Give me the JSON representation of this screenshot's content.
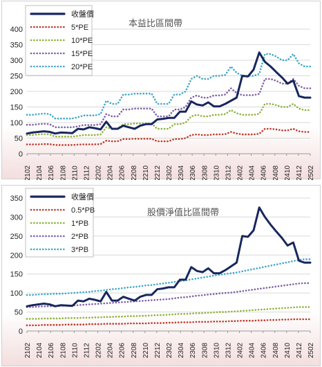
{
  "chart_data": [
    {
      "type": "line",
      "title": "本益比區間帶",
      "ylim": [
        0,
        400
      ],
      "yticks": [
        0,
        50,
        100,
        150,
        200,
        250,
        300,
        350,
        400
      ],
      "xticks": [
        "2102",
        "2104",
        "2106",
        "2108",
        "2110",
        "2112",
        "2202",
        "2204",
        "2206",
        "2208",
        "2210",
        "2212",
        "2302",
        "2304",
        "2306",
        "2308",
        "2310",
        "2312",
        "2402",
        "2404",
        "2406",
        "2408",
        "2410",
        "2412",
        "2502"
      ],
      "grid": true,
      "legend_placement": "top-left",
      "series": [
        {
          "name": "收盤價",
          "color": "#17275e",
          "style": "solid",
          "values": [
            65,
            68,
            70,
            72,
            70,
            65,
            68,
            67,
            66,
            80,
            78,
            85,
            82,
            78,
            103,
            80,
            80,
            90,
            85,
            80,
            90,
            95,
            95,
            110,
            112,
            115,
            115,
            135,
            135,
            168,
            158,
            155,
            165,
            152,
            152,
            160,
            170,
            180,
            250,
            248,
            270,
            325,
            295,
            280,
            262,
            245,
            225,
            235,
            185,
            180,
            180
          ]
        },
        {
          "name": "5*PE",
          "color": "#c0392b",
          "style": "dotted",
          "values": [
            30,
            30,
            30,
            31,
            31,
            28,
            28,
            28,
            28,
            29,
            30,
            30,
            30,
            31,
            42,
            40,
            40,
            47,
            47,
            48,
            48,
            48,
            48,
            40,
            40,
            40,
            47,
            47,
            50,
            60,
            62,
            60,
            60,
            62,
            62,
            63,
            70,
            65,
            62,
            62,
            62,
            64,
            80,
            80,
            78,
            75,
            75,
            80,
            72,
            70,
            70
          ]
        },
        {
          "name": "10*PE",
          "color": "#8db33a",
          "style": "dotted",
          "values": [
            60,
            60,
            62,
            63,
            62,
            55,
            55,
            55,
            55,
            57,
            60,
            60,
            60,
            62,
            85,
            80,
            80,
            95,
            95,
            97,
            97,
            97,
            97,
            80,
            80,
            80,
            95,
            95,
            100,
            120,
            125,
            120,
            120,
            125,
            125,
            127,
            140,
            130,
            125,
            125,
            125,
            128,
            160,
            160,
            156,
            150,
            150,
            160,
            145,
            140,
            140
          ]
        },
        {
          "name": "15*PE",
          "color": "#7f5fa6",
          "style": "dotted",
          "values": [
            93,
            93,
            95,
            96,
            95,
            85,
            85,
            85,
            85,
            88,
            92,
            92,
            92,
            95,
            127,
            120,
            120,
            142,
            142,
            145,
            145,
            145,
            145,
            120,
            120,
            120,
            142,
            142,
            150,
            180,
            187,
            180,
            180,
            187,
            187,
            190,
            210,
            195,
            188,
            188,
            188,
            192,
            240,
            240,
            234,
            225,
            225,
            240,
            218,
            210,
            210
          ]
        },
        {
          "name": "20*PE",
          "color": "#3ea7c9",
          "style": "dotted",
          "values": [
            125,
            125,
            127,
            129,
            127,
            113,
            113,
            113,
            113,
            117,
            123,
            123,
            123,
            127,
            170,
            160,
            160,
            190,
            190,
            193,
            193,
            193,
            193,
            160,
            160,
            160,
            190,
            190,
            200,
            240,
            250,
            240,
            240,
            250,
            250,
            253,
            280,
            260,
            250,
            250,
            250,
            256,
            320,
            320,
            312,
            300,
            300,
            320,
            290,
            280,
            280
          ]
        }
      ]
    },
    {
      "type": "line",
      "title": "股價淨值比區間帶",
      "ylim": [
        0,
        350
      ],
      "yticks": [
        0,
        50,
        100,
        150,
        200,
        250,
        300,
        350
      ],
      "xticks": [
        "2102",
        "2104",
        "2106",
        "2108",
        "2110",
        "2112",
        "2202",
        "2204",
        "2206",
        "2208",
        "2210",
        "2212",
        "2302",
        "2304",
        "2306",
        "2308",
        "2310",
        "2312",
        "2402",
        "2404",
        "2406",
        "2408",
        "2410",
        "2412",
        "2502"
      ],
      "grid": true,
      "legend_placement": "top-left",
      "series": [
        {
          "name": "收盤價",
          "color": "#17275e",
          "style": "solid",
          "values": [
            65,
            68,
            70,
            72,
            70,
            65,
            68,
            67,
            66,
            80,
            78,
            85,
            82,
            78,
            103,
            80,
            80,
            90,
            85,
            80,
            90,
            95,
            95,
            110,
            112,
            115,
            115,
            135,
            135,
            168,
            158,
            155,
            165,
            152,
            152,
            160,
            170,
            180,
            250,
            248,
            265,
            325,
            300,
            280,
            262,
            245,
            225,
            233,
            185,
            180,
            180
          ]
        },
        {
          "name": "0.5*PB",
          "color": "#c0392b",
          "style": "dotted",
          "values": [
            15,
            15,
            15,
            16,
            16,
            16,
            16,
            17,
            17,
            17,
            17,
            18,
            18,
            18,
            19,
            19,
            19,
            19,
            20,
            20,
            20,
            20,
            21,
            21,
            21,
            22,
            22,
            23,
            23,
            23,
            24,
            24,
            24,
            25,
            25,
            25,
            26,
            26,
            27,
            27,
            27,
            28,
            28,
            29,
            29,
            30,
            30,
            31,
            31,
            31,
            31
          ]
        },
        {
          "name": "1*PB",
          "color": "#8db33a",
          "style": "dotted",
          "values": [
            32,
            32,
            32,
            33,
            33,
            33,
            33,
            34,
            34,
            34,
            35,
            35,
            36,
            36,
            37,
            37,
            38,
            38,
            39,
            39,
            40,
            40,
            41,
            42,
            42,
            43,
            44,
            45,
            45,
            46,
            47,
            47,
            48,
            49,
            50,
            50,
            51,
            52,
            53,
            54,
            55,
            56,
            57,
            58,
            59,
            60,
            61,
            62,
            63,
            63,
            63
          ]
        },
        {
          "name": "2*PB",
          "color": "#7f5fa6",
          "style": "dotted",
          "values": [
            63,
            63,
            64,
            65,
            65,
            66,
            66,
            67,
            67,
            68,
            69,
            70,
            71,
            72,
            73,
            74,
            75,
            76,
            77,
            78,
            79,
            80,
            81,
            82,
            83,
            84,
            86,
            88,
            89,
            91,
            93,
            94,
            96,
            97,
            99,
            100,
            101,
            103,
            105,
            107,
            109,
            111,
            113,
            115,
            117,
            119,
            121,
            123,
            125,
            126,
            126
          ]
        },
        {
          "name": "3*PB",
          "color": "#3ea7c9",
          "style": "dotted",
          "values": [
            95,
            95,
            96,
            97,
            97,
            98,
            98,
            99,
            100,
            101,
            102,
            103,
            105,
            106,
            108,
            110,
            111,
            113,
            115,
            116,
            118,
            120,
            121,
            123,
            125,
            127,
            129,
            131,
            133,
            136,
            138,
            141,
            143,
            146,
            148,
            150,
            152,
            154,
            157,
            160,
            163,
            166,
            169,
            172,
            175,
            178,
            181,
            184,
            187,
            189,
            189
          ]
        }
      ]
    }
  ]
}
